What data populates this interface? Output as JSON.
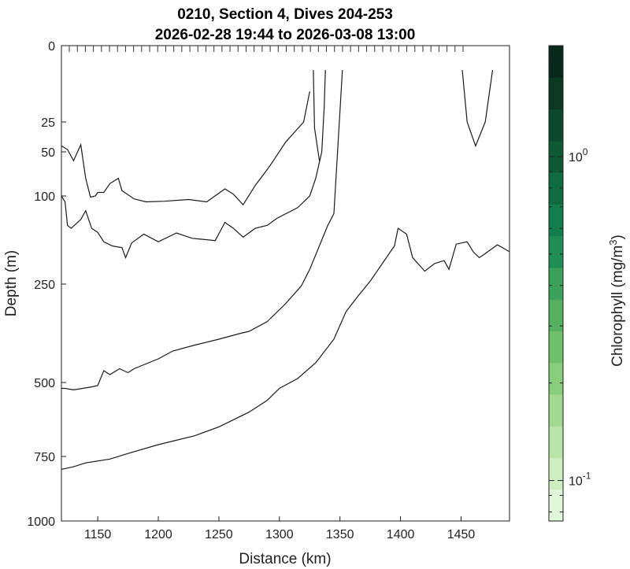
{
  "chart_data": {
    "type": "contour",
    "title": [
      "0210, Section 4, Dives 204-253",
      "2026-02-28 19:44 to 2026-03-08 13:00"
    ],
    "xlabel": "Distance (km)",
    "ylabel": "Depth (m)",
    "colorbar_label": "Chlorophyll (mg/m",
    "colorbar_label_sup": "3",
    "colorbar_label_end": ")",
    "xlim": [
      1120,
      1490
    ],
    "ylim": [
      0,
      1000
    ],
    "x_ticks": [
      1150,
      1200,
      1250,
      1300,
      1350,
      1400,
      1450
    ],
    "y_ticks": [
      0,
      25,
      50,
      100,
      250,
      500,
      750,
      1000
    ],
    "y_scale": "stretched",
    "colorbar": {
      "scale": "log",
      "range": [
        0.075,
        2.2
      ],
      "ticks": [
        {
          "base": "10",
          "exp": "0",
          "value": 1.0
        },
        {
          "base": "10",
          "exp": "-1",
          "value": 0.1
        }
      ],
      "colors": [
        "#e0f7d8",
        "#cdeec0",
        "#b9e4a8",
        "#a2d990",
        "#88cd7c",
        "#6fbf6b",
        "#55b160",
        "#3aa05a",
        "#1f8e55",
        "#127e4c",
        "#0f6c40",
        "#0e5a35",
        "#0c482b",
        "#0a3821",
        "#082919"
      ]
    },
    "dive_tick_count": 50,
    "contours": [
      {
        "points": [
          [
            1120,
            45
          ],
          [
            1125,
            48
          ],
          [
            1130,
            60
          ],
          [
            1136,
            44
          ],
          [
            1140,
            80
          ],
          [
            1144,
            102
          ],
          [
            1148,
            100
          ],
          [
            1150,
            96
          ],
          [
            1155,
            96
          ],
          [
            1160,
            86
          ],
          [
            1167,
            80
          ],
          [
            1170,
            94
          ],
          [
            1180,
            105
          ],
          [
            1190,
            110
          ],
          [
            1205,
            109
          ],
          [
            1225,
            106
          ],
          [
            1240,
            110
          ],
          [
            1255,
            92
          ],
          [
            1262,
            98
          ],
          [
            1270,
            115
          ],
          [
            1280,
            88
          ],
          [
            1290,
            70
          ],
          [
            1295,
            60
          ],
          [
            1305,
            42
          ],
          [
            1320,
            25
          ],
          [
            1325,
            15
          ]
        ]
      },
      {
        "points": [
          [
            1328,
            8
          ],
          [
            1329,
            30
          ],
          [
            1333,
            60
          ]
        ]
      },
      {
        "points": [
          [
            1120,
            100
          ],
          [
            1123,
            110
          ],
          [
            1125,
            150
          ],
          [
            1128,
            155
          ],
          [
            1136,
            140
          ],
          [
            1140,
            125
          ],
          [
            1145,
            155
          ],
          [
            1150,
            162
          ],
          [
            1155,
            178
          ],
          [
            1162,
            185
          ],
          [
            1170,
            188
          ],
          [
            1173,
            205
          ],
          [
            1178,
            180
          ],
          [
            1188,
            165
          ],
          [
            1200,
            178
          ],
          [
            1215,
            163
          ],
          [
            1228,
            172
          ],
          [
            1247,
            176
          ],
          [
            1255,
            145
          ],
          [
            1262,
            155
          ],
          [
            1270,
            170
          ],
          [
            1280,
            155
          ],
          [
            1290,
            150
          ],
          [
            1298,
            138
          ],
          [
            1315,
            120
          ],
          [
            1325,
            100
          ],
          [
            1330,
            80
          ],
          [
            1335,
            50
          ],
          [
            1337,
            20
          ],
          [
            1338,
            8
          ]
        ]
      },
      {
        "points": [
          [
            1120,
            520
          ],
          [
            1123,
            520
          ],
          [
            1130,
            525
          ],
          [
            1145,
            515
          ],
          [
            1150,
            510
          ],
          [
            1155,
            470
          ],
          [
            1160,
            480
          ],
          [
            1168,
            465
          ],
          [
            1175,
            475
          ],
          [
            1180,
            465
          ],
          [
            1200,
            440
          ],
          [
            1212,
            420
          ],
          [
            1230,
            405
          ],
          [
            1250,
            390
          ],
          [
            1268,
            375
          ],
          [
            1275,
            370
          ],
          [
            1290,
            345
          ],
          [
            1305,
            300
          ],
          [
            1318,
            255
          ],
          [
            1325,
            225
          ],
          [
            1335,
            175
          ],
          [
            1340,
            150
          ],
          [
            1345,
            130
          ],
          [
            1352,
            8
          ]
        ]
      },
      {
        "points": [
          [
            1120,
            800
          ],
          [
            1130,
            790
          ],
          [
            1140,
            775
          ],
          [
            1160,
            760
          ],
          [
            1175,
            740
          ],
          [
            1200,
            710
          ],
          [
            1230,
            680
          ],
          [
            1250,
            650
          ],
          [
            1260,
            630
          ],
          [
            1275,
            600
          ],
          [
            1290,
            560
          ],
          [
            1300,
            520
          ],
          [
            1315,
            490
          ],
          [
            1330,
            450
          ],
          [
            1345,
            390
          ],
          [
            1355,
            320
          ],
          [
            1365,
            280
          ],
          [
            1375,
            245
          ],
          [
            1385,
            215
          ],
          [
            1395,
            185
          ],
          [
            1398,
            155
          ],
          [
            1405,
            165
          ],
          [
            1410,
            205
          ],
          [
            1420,
            228
          ],
          [
            1428,
            215
          ],
          [
            1436,
            210
          ],
          [
            1440,
            225
          ],
          [
            1446,
            182
          ],
          [
            1455,
            178
          ],
          [
            1460,
            195
          ],
          [
            1465,
            205
          ],
          [
            1470,
            198
          ],
          [
            1480,
            183
          ],
          [
            1490,
            195
          ]
        ]
      },
      {
        "points": [
          [
            1451,
            8
          ],
          [
            1455,
            25
          ],
          [
            1462,
            45
          ],
          [
            1470,
            25
          ],
          [
            1476,
            8
          ]
        ]
      }
    ]
  }
}
